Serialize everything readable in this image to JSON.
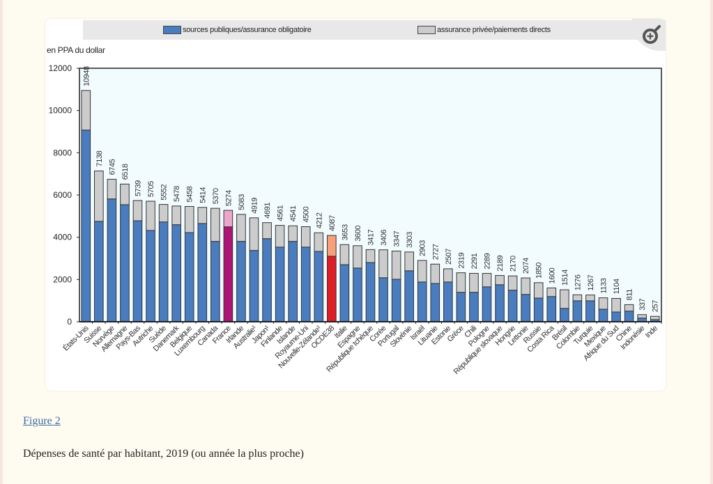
{
  "figure": {
    "link_label": "Figure 2",
    "caption": "Dépenses de santé par habitant, 2019 (ou année la plus proche)",
    "zoom_button": "zoom-in-icon"
  },
  "colors": {
    "public": "#4a7cc0",
    "private": "#cccccc",
    "france_public": "#ad1474",
    "france_private": "#eda6c9",
    "oecd_public": "#e01c24",
    "oecd_private": "#f7a07a",
    "plot_bg": "#f2fcff",
    "legend_bg": "#e8e8e8"
  },
  "chart_data": {
    "type": "bar",
    "stacked": true,
    "title": "Dépenses de santé par habitant, 2019 (ou année la plus proche)",
    "ylabel": "en PPA du dollar",
    "xlabel": "",
    "ylim": [
      0,
      12000
    ],
    "yticks": [
      0,
      2000,
      4000,
      6000,
      8000,
      10000,
      12000
    ],
    "grid": false,
    "legend_position": "top",
    "legend": [
      "sources publiques/assurance obligatoire",
      "assurance privée/paiements directs"
    ],
    "categories": [
      "États-Unis",
      "Suisse",
      "Norvège",
      "Allemagne",
      "Pays-Bas",
      "Autriche",
      "Suède",
      "Danemark",
      "Belgique",
      "Luxembourg",
      "Canada",
      "France",
      "Irlande",
      "Australie¹",
      "Japon¹",
      "Finlande",
      "Islande",
      "Royaume-Uni",
      "Nouvelle-Zélande¹",
      "OCDE38",
      "Italie",
      "Espagne",
      "République tchèque",
      "Corée",
      "Portugal",
      "Slovénie",
      "Israël",
      "Lituanie",
      "Estonie",
      "Grèce",
      "Chili",
      "Pologne",
      "République slovaque",
      "Hongrie",
      "Lettonie",
      "Russie",
      "Costa Rica",
      "Brésil",
      "Colombie",
      "Turquie",
      "Mexique",
      "Afrique du Sud",
      "Chine",
      "Indonésie",
      "Inde"
    ],
    "totals": [
      10948,
      7138,
      6745,
      6518,
      5739,
      5705,
      5552,
      5478,
      5458,
      5414,
      5370,
      5274,
      5083,
      4919,
      4691,
      4561,
      4541,
      4500,
      4212,
      4087,
      3653,
      3600,
      3417,
      3406,
      3347,
      3303,
      2903,
      2727,
      2507,
      2319,
      2291,
      2289,
      2189,
      2170,
      2074,
      1850,
      1600,
      1514,
      1276,
      1267,
      1133,
      1104,
      811,
      337,
      257
    ],
    "series": [
      {
        "name": "sources publiques/assurance obligatoire",
        "values": [
          9070,
          4750,
          5810,
          5540,
          4780,
          4320,
          4720,
          4590,
          4220,
          4650,
          3800,
          4490,
          3800,
          3370,
          3930,
          3530,
          3800,
          3530,
          3330,
          3100,
          2700,
          2540,
          2800,
          2080,
          2010,
          2410,
          1880,
          1810,
          1880,
          1390,
          1390,
          1650,
          1750,
          1490,
          1290,
          1120,
          1190,
          630,
          990,
          990,
          590,
          460,
          500,
          170,
          100
        ]
      },
      {
        "name": "assurance privée/paiements directs",
        "values": [
          1878,
          2388,
          935,
          978,
          959,
          1385,
          832,
          888,
          1238,
          764,
          1570,
          784,
          1283,
          1549,
          761,
          1031,
          741,
          970,
          882,
          987,
          953,
          1060,
          617,
          1326,
          1337,
          893,
          1023,
          917,
          627,
          929,
          901,
          639,
          439,
          680,
          784,
          730,
          410,
          884,
          286,
          277,
          543,
          644,
          311,
          167,
          157
        ]
      }
    ],
    "highlight": {
      "France": "france",
      "OCDE38": "oecd"
    }
  }
}
